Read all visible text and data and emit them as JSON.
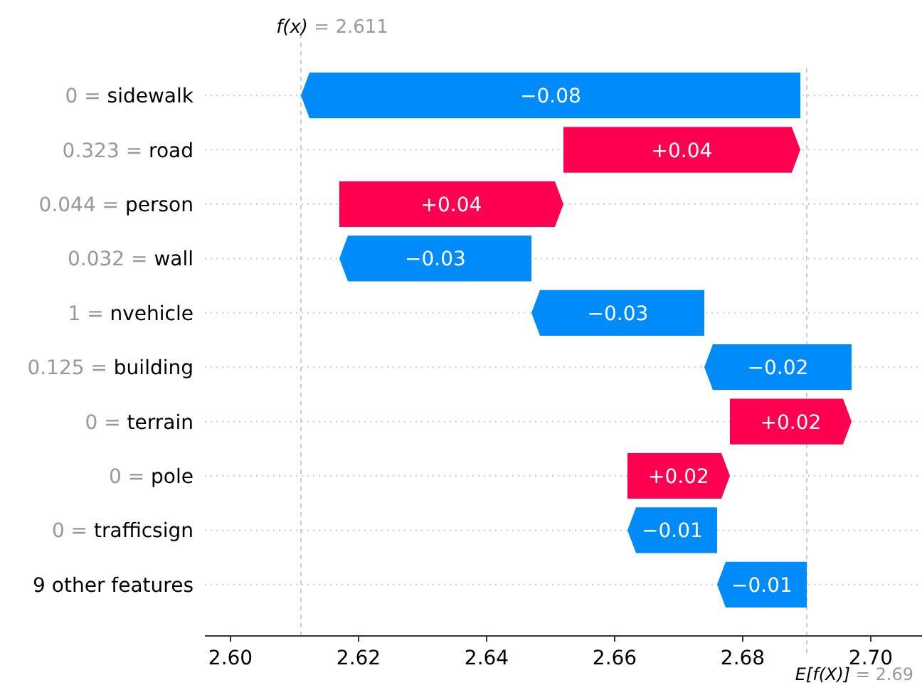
{
  "chart_data": {
    "type": "bar",
    "orientation": "horizontal",
    "categories": [
      "0 = sidewalk",
      "0.323 = road",
      "0.044 = person",
      "0.032 = wall",
      "1 = nvehicle",
      "0.125 = building",
      "0 = terrain",
      "0 = pole",
      "0 = trafficsign",
      "9 other features"
    ],
    "base": [
      2.689,
      2.652,
      2.617,
      2.647,
      2.674,
      2.697,
      2.678,
      2.662,
      2.676,
      2.69
    ],
    "values": [
      -0.078,
      0.037,
      0.035,
      -0.03,
      -0.027,
      -0.023,
      0.019,
      0.016,
      -0.014,
      -0.014
    ],
    "value_labels": [
      "−0.08",
      "+0.04",
      "+0.04",
      "−0.03",
      "−0.03",
      "−0.02",
      "+0.02",
      "+0.02",
      "−0.01",
      "−0.01"
    ],
    "colors": [
      "#008bfb",
      "#ff0051",
      "#ff0051",
      "#008bfb",
      "#008bfb",
      "#008bfb",
      "#ff0051",
      "#ff0051",
      "#008bfb",
      "#008bfb"
    ],
    "xlim": [
      2.596,
      2.708
    ],
    "xticks": [
      {
        "value": 2.6,
        "label": "2.60"
      },
      {
        "value": 2.62,
        "label": "2.62"
      },
      {
        "value": 2.64,
        "label": "2.64"
      },
      {
        "value": 2.66,
        "label": "2.66"
      },
      {
        "value": 2.68,
        "label": "2.68"
      },
      {
        "value": 2.7,
        "label": "2.70"
      }
    ],
    "ref_lines": [
      {
        "axis": "x",
        "value": 2.611,
        "label": "f(x) = 2.611",
        "color": "#cccccc",
        "line_style": "dashed"
      },
      {
        "axis": "x",
        "value": 2.69,
        "label": "E[f(X)] = 2.69",
        "color": "#cccccc",
        "line_style": "dashed"
      }
    ],
    "grid": "y"
  }
}
